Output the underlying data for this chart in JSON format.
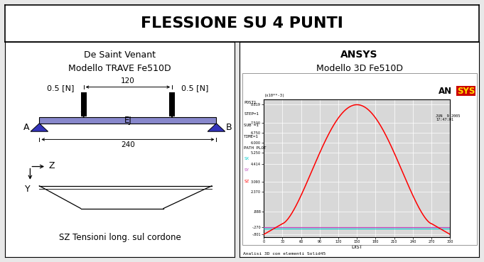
{
  "title": "FLESSIONE SU 4 PUNTI",
  "left_title1": "De Saint Venant",
  "left_title2": "Modello TRAVE Fe510D",
  "right_title1": "ANSYS",
  "right_title2": "Modello 3D Fe510D",
  "load_label_left": "0.5 [N]",
  "load_label_right": "0.5 [N]",
  "ej_label": "EJ",
  "dim_label_120": "120",
  "dim_label_240": "240",
  "label_A": "A",
  "label_B": "B",
  "label_Z": "Z",
  "label_Y": "Y",
  "bottom_label": "SZ Tensioni long. sul cordone",
  "ansys_info1": "POST1",
  "ansys_info2": "STEP=1",
  "ansys_info3": "SUB =1",
  "ansys_info4": "TIME=1",
  "ansys_info5": "PATH PLOT",
  "ansys_legend_sx": "SX",
  "ansys_legend_sy": "SY",
  "ansys_legend_sz": "SZ",
  "ansys_color_sx": "#00cccc",
  "ansys_color_sy": "#bb44bb",
  "ansys_color_sz": "#ff0000",
  "ansys_date": "JUN  9 2005\n17:47:01",
  "ansys_ylabel": "(x10**-3)",
  "ansys_xlabel": "DIST",
  "ansys_footnote": "Analisi 3D con elementi Solid45",
  "bg_color": "#e8e8e8",
  "panel_bg": "#ffffff",
  "beam_fill": "#8888cc",
  "beam_edge": "#000000",
  "triangle_color": "#3333bb",
  "plot_bg": "#d8d8d8",
  "title_fontsize": 16,
  "panel_title_fontsize": 9
}
